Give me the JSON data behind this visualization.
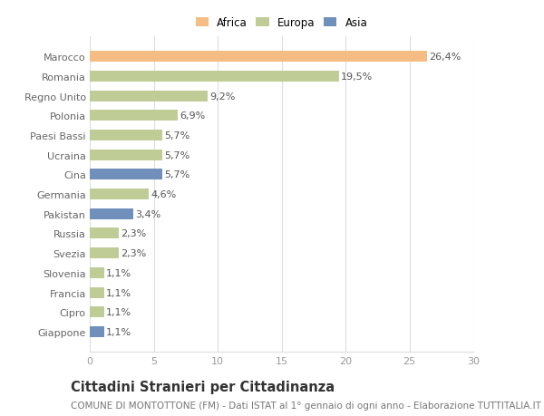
{
  "countries": [
    "Marocco",
    "Romania",
    "Regno Unito",
    "Polonia",
    "Paesi Bassi",
    "Ucraina",
    "Cina",
    "Germania",
    "Pakistan",
    "Russia",
    "Svezia",
    "Slovenia",
    "Francia",
    "Cipro",
    "Giappone"
  ],
  "values": [
    26.4,
    19.5,
    9.2,
    6.9,
    5.7,
    5.7,
    5.7,
    4.6,
    3.4,
    2.3,
    2.3,
    1.1,
    1.1,
    1.1,
    1.1
  ],
  "continents": [
    "Africa",
    "Europa",
    "Europa",
    "Europa",
    "Europa",
    "Europa",
    "Asia",
    "Europa",
    "Asia",
    "Europa",
    "Europa",
    "Europa",
    "Europa",
    "Europa",
    "Asia"
  ],
  "colors": {
    "Africa": "#F5BC84",
    "Europa": "#BFCC96",
    "Asia": "#7090BB"
  },
  "legend_labels": [
    "Africa",
    "Europa",
    "Asia"
  ],
  "legend_colors": [
    "#F5BC84",
    "#BFCC96",
    "#7090BB"
  ],
  "xlim": [
    0,
    30
  ],
  "xticks": [
    0,
    5,
    10,
    15,
    20,
    25,
    30
  ],
  "title": "Cittadini Stranieri per Cittadinanza",
  "subtitle": "COMUNE DI MONTOTTONE (FM) - Dati ISTAT al 1° gennaio di ogni anno - Elaborazione TUTTITALIA.IT",
  "bg_color": "#ffffff",
  "grid_color": "#dddddd",
  "bar_height": 0.55,
  "label_fontsize": 8.0,
  "tick_fontsize": 8.0,
  "title_fontsize": 10.5,
  "subtitle_fontsize": 7.5,
  "value_fontsize": 8.0
}
